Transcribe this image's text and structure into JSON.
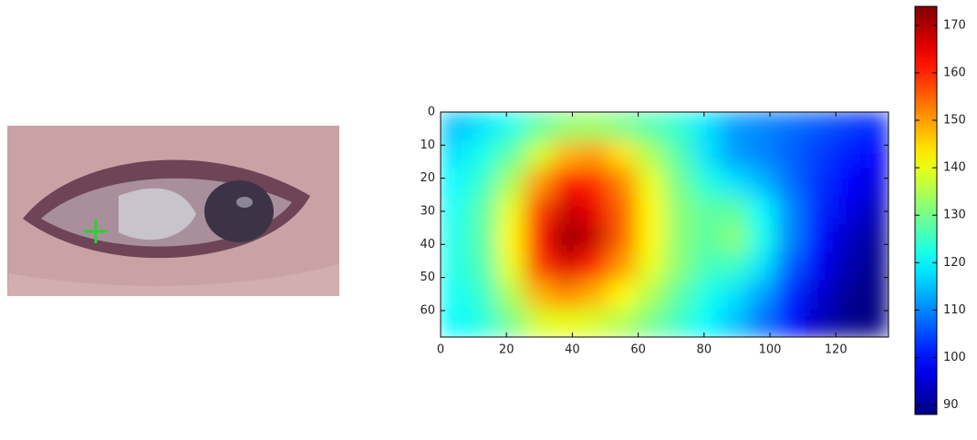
{
  "chart_data": {
    "type": "heatmap",
    "colormap": "jet",
    "xlim": [
      0,
      136
    ],
    "ylim": [
      68,
      0
    ],
    "xticks": [
      0,
      20,
      40,
      60,
      80,
      100,
      120
    ],
    "yticks": [
      0,
      10,
      20,
      30,
      40,
      50,
      60
    ],
    "z": [
      [
        115,
        118,
        122,
        128,
        132,
        133,
        130,
        127,
        124,
        118,
        112,
        110,
        108,
        106,
        104,
        102
      ],
      [
        118,
        122,
        128,
        138,
        148,
        150,
        144,
        135,
        127,
        118,
        112,
        110,
        107,
        104,
        101,
        99
      ],
      [
        120,
        125,
        135,
        150,
        162,
        160,
        152,
        140,
        130,
        123,
        118,
        114,
        108,
        103,
        99,
        96
      ],
      [
        121,
        128,
        140,
        158,
        168,
        165,
        155,
        142,
        132,
        128,
        128,
        120,
        110,
        102,
        97,
        93
      ],
      [
        122,
        128,
        142,
        162,
        172,
        168,
        155,
        142,
        132,
        128,
        132,
        122,
        110,
        100,
        94,
        90
      ],
      [
        122,
        127,
        140,
        158,
        166,
        160,
        150,
        140,
        132,
        126,
        125,
        118,
        106,
        98,
        92,
        89
      ],
      [
        121,
        125,
        135,
        148,
        152,
        148,
        142,
        135,
        128,
        122,
        118,
        112,
        102,
        95,
        90,
        88
      ],
      [
        120,
        123,
        130,
        138,
        140,
        138,
        135,
        130,
        125,
        120,
        115,
        108,
        100,
        93,
        89,
        88
      ]
    ],
    "colorbar": {
      "clim": [
        88,
        174
      ],
      "ticks": [
        90,
        100,
        110,
        120,
        130,
        140,
        150,
        160,
        170
      ]
    }
  }
}
